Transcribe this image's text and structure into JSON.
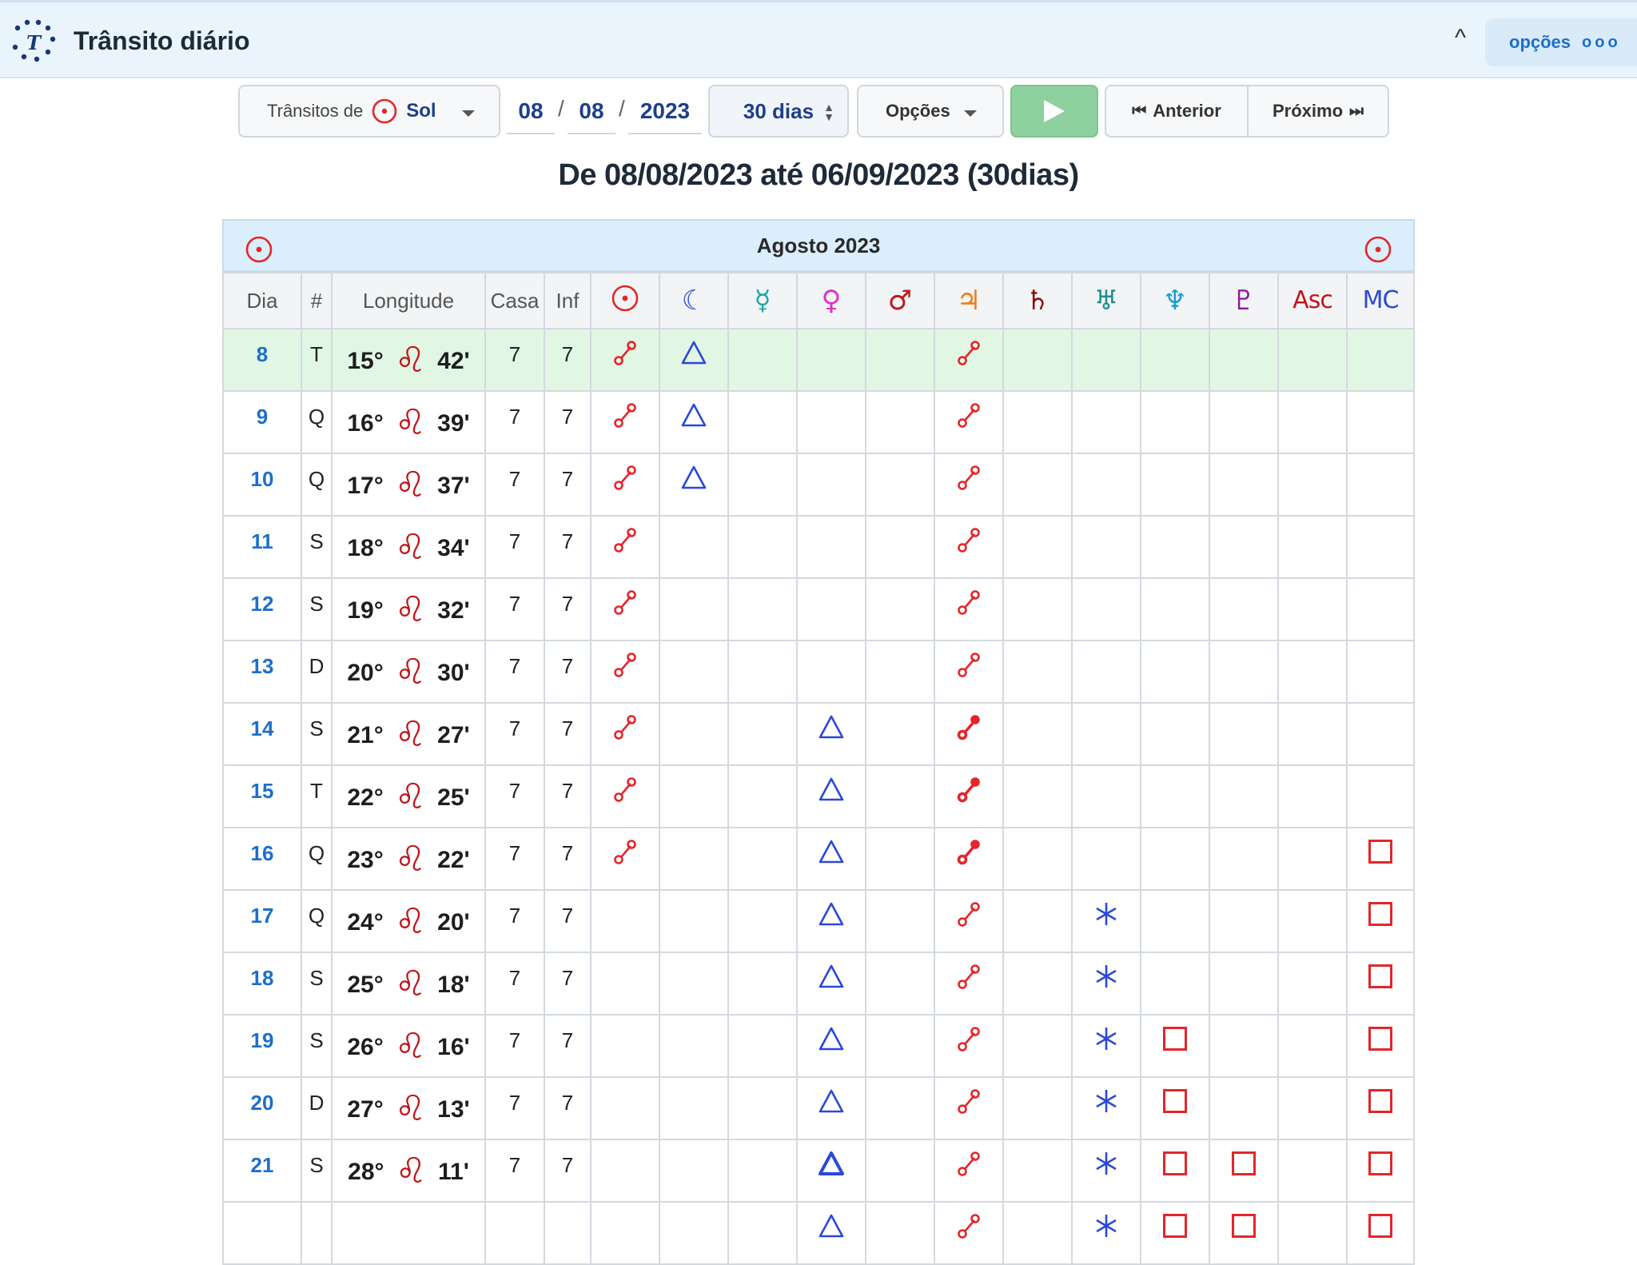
{
  "header": {
    "title": "Trânsito diário",
    "options_label": "opções",
    "options_dots": "ooo"
  },
  "toolbar": {
    "transitos_label": "Trânsitos de",
    "transitos_planet": "Sol",
    "day": "08",
    "month": "08",
    "year": "2023",
    "date_sep": "/",
    "period": "30 dias",
    "options": "Opções",
    "prev": "Anterior",
    "next": "Próximo"
  },
  "range_title": "De 08/08/2023 até 06/09/2023 (30dias)",
  "table": {
    "month_label": "Agosto 2023",
    "columns": [
      "Dia",
      "#",
      "Longitude",
      "Casa",
      "Inf"
    ],
    "planet_columns": [
      {
        "name": "sun",
        "glyph": "☉",
        "color": "#e3262b"
      },
      {
        "name": "moon",
        "glyph": "☾",
        "color": "#2b48d9"
      },
      {
        "name": "mercury",
        "glyph": "☿",
        "color": "#1aa6a6"
      },
      {
        "name": "venus",
        "glyph": "♀",
        "color": "#e032c8"
      },
      {
        "name": "mars",
        "glyph": "♂",
        "color": "#c0161b"
      },
      {
        "name": "jupiter",
        "glyph": "♃",
        "color": "#f07a1a"
      },
      {
        "name": "saturn",
        "glyph": "♄",
        "color": "#8a1010"
      },
      {
        "name": "uranus",
        "glyph": "♅",
        "color": "#1a8f8f"
      },
      {
        "name": "neptune",
        "glyph": "♆",
        "color": "#1a9ad6"
      },
      {
        "name": "pluto",
        "glyph": "♇",
        "color": "#8b1a9a"
      },
      {
        "name": "asc",
        "glyph": "Asc",
        "color": "#c0161b"
      },
      {
        "name": "mc",
        "glyph": "MC",
        "color": "#2b48d9"
      }
    ],
    "rows": [
      {
        "day": "8",
        "wd": "T",
        "deg": "15°",
        "min": "42'",
        "casa": "7",
        "inf": "7",
        "today": true,
        "asp": {
          "sun": "conj",
          "moon": "trine",
          "jupiter": "conj"
        }
      },
      {
        "day": "9",
        "wd": "Q",
        "deg": "16°",
        "min": "39'",
        "casa": "7",
        "inf": "7",
        "asp": {
          "sun": "conj",
          "moon": "trine",
          "jupiter": "conj"
        }
      },
      {
        "day": "10",
        "wd": "Q",
        "deg": "17°",
        "min": "37'",
        "casa": "7",
        "inf": "7",
        "asp": {
          "sun": "conj",
          "moon": "trine",
          "jupiter": "conj"
        }
      },
      {
        "day": "11",
        "wd": "S",
        "deg": "18°",
        "min": "34'",
        "casa": "7",
        "inf": "7",
        "asp": {
          "sun": "conj",
          "jupiter": "conj"
        }
      },
      {
        "day": "12",
        "wd": "S",
        "deg": "19°",
        "min": "32'",
        "casa": "7",
        "inf": "7",
        "asp": {
          "sun": "conj",
          "jupiter": "conj"
        }
      },
      {
        "day": "13",
        "wd": "D",
        "deg": "20°",
        "min": "30'",
        "casa": "7",
        "inf": "7",
        "asp": {
          "sun": "conj",
          "jupiter": "conj"
        }
      },
      {
        "day": "14",
        "wd": "S",
        "deg": "21°",
        "min": "27'",
        "casa": "7",
        "inf": "7",
        "asp": {
          "sun": "conj",
          "venus": "trine",
          "jupiter": "conj-strong"
        }
      },
      {
        "day": "15",
        "wd": "T",
        "deg": "22°",
        "min": "25'",
        "casa": "7",
        "inf": "7",
        "asp": {
          "sun": "conj",
          "venus": "trine",
          "jupiter": "conj-strong"
        }
      },
      {
        "day": "16",
        "wd": "Q",
        "deg": "23°",
        "min": "22'",
        "casa": "7",
        "inf": "7",
        "asp": {
          "sun": "conj",
          "venus": "trine",
          "jupiter": "conj-strong",
          "mc": "square"
        }
      },
      {
        "day": "17",
        "wd": "Q",
        "deg": "24°",
        "min": "20'",
        "casa": "7",
        "inf": "7",
        "asp": {
          "venus": "trine",
          "jupiter": "conj",
          "uranus": "sext",
          "mc": "square"
        }
      },
      {
        "day": "18",
        "wd": "S",
        "deg": "25°",
        "min": "18'",
        "casa": "7",
        "inf": "7",
        "asp": {
          "venus": "trine",
          "jupiter": "conj",
          "uranus": "sext",
          "mc": "square"
        }
      },
      {
        "day": "19",
        "wd": "S",
        "deg": "26°",
        "min": "16'",
        "casa": "7",
        "inf": "7",
        "asp": {
          "venus": "trine",
          "jupiter": "conj",
          "uranus": "sext",
          "neptune": "square",
          "mc": "square"
        }
      },
      {
        "day": "20",
        "wd": "D",
        "deg": "27°",
        "min": "13'",
        "casa": "7",
        "inf": "7",
        "asp": {
          "venus": "trine",
          "jupiter": "conj",
          "uranus": "sext",
          "neptune": "square",
          "mc": "square"
        }
      },
      {
        "day": "21",
        "wd": "S",
        "deg": "28°",
        "min": "11'",
        "casa": "7",
        "inf": "7",
        "asp": {
          "venus": "trine-strong",
          "jupiter": "conj",
          "uranus": "sext",
          "neptune": "square",
          "pluto": "square",
          "mc": "square"
        }
      },
      {
        "day": "",
        "wd": "",
        "deg": "",
        "min": "",
        "casa": "",
        "inf": "",
        "asp": {
          "venus": "trine",
          "jupiter": "conj",
          "uranus": "sext",
          "neptune": "square",
          "pluto": "square",
          "mc": "square"
        }
      }
    ]
  },
  "colors": {
    "accent_blue": "#1d6fc9",
    "aspect_red": "#e3262b",
    "aspect_blue": "#2b48d9",
    "today_row": "#e2f6e4",
    "play_green": "#8fd19e"
  },
  "icons": {
    "logo": "dotted-t-logo-icon",
    "sun": "sun-symbol-icon",
    "leo": "leo-symbol-icon"
  }
}
